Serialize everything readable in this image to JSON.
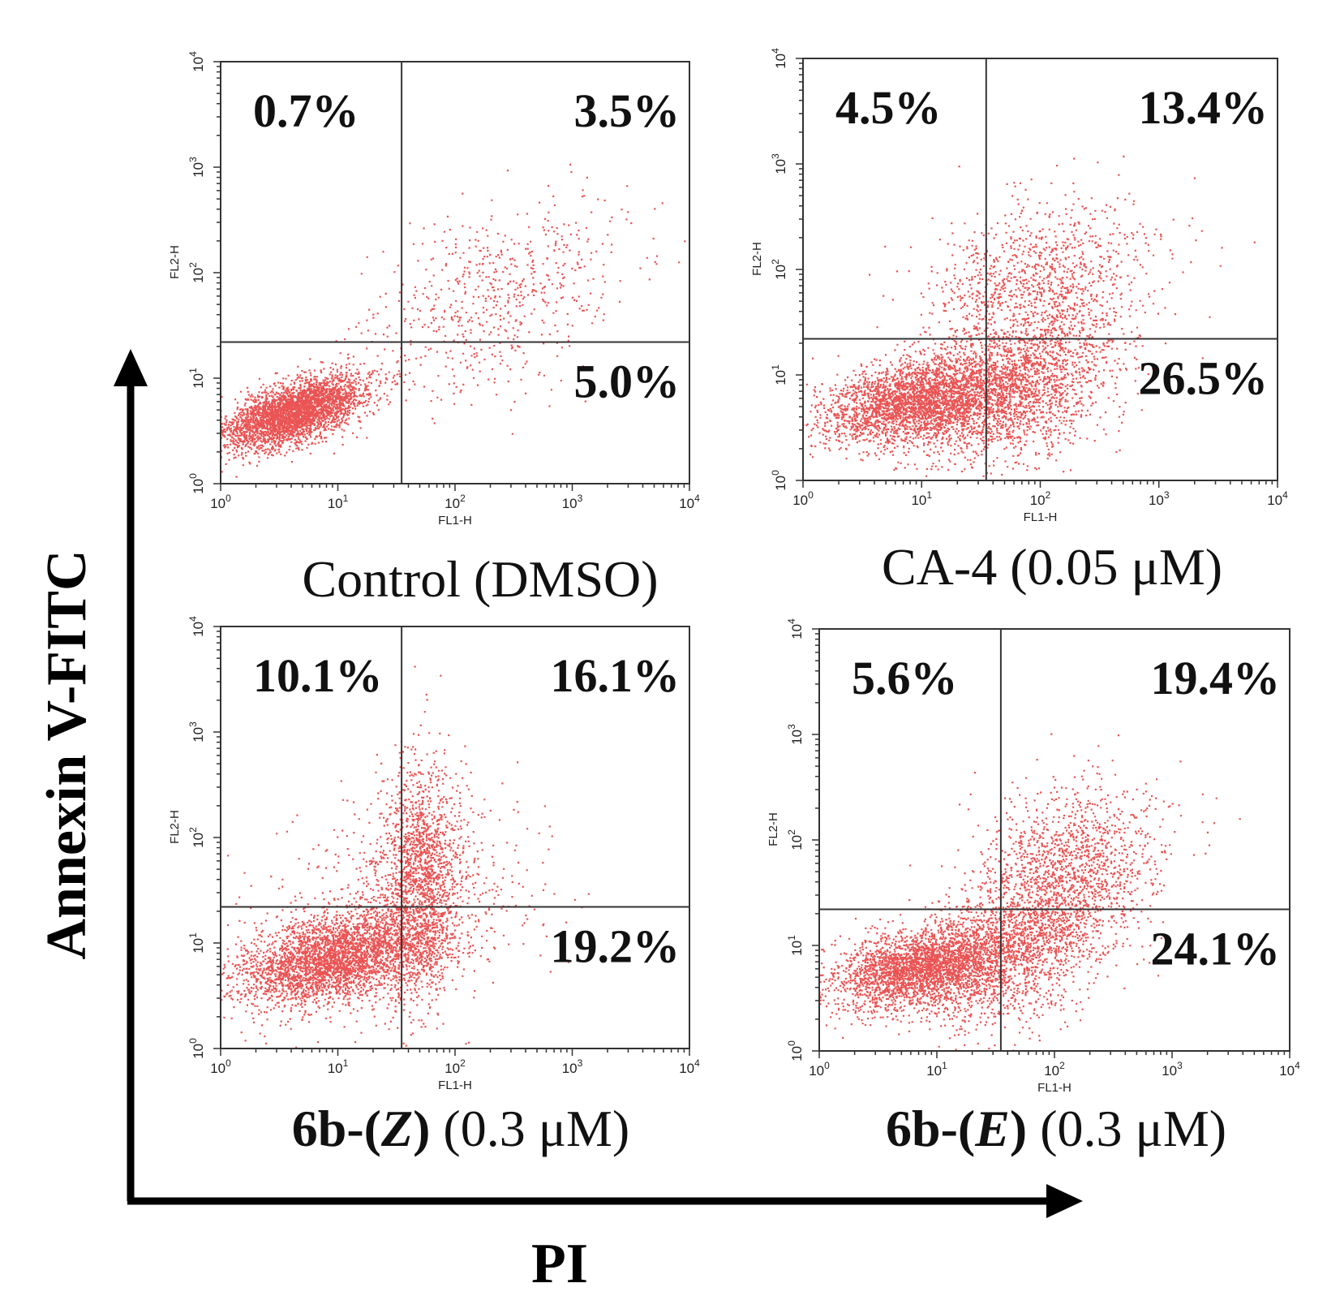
{
  "figure": {
    "y_axis_label": "Annexin V-FITC",
    "x_axis_label": "PI"
  },
  "chart_data": [
    {
      "type": "scatter",
      "panel": "top-left",
      "title": "Control (DMSO)",
      "title_parts": [
        {
          "text": "Control (DMSO)",
          "bold": false,
          "italic": false
        }
      ],
      "xlabel": "FL1-H",
      "ylabel": "FL2-H",
      "xscale": "log",
      "yscale": "log",
      "xlim": [
        1,
        10000
      ],
      "ylim": [
        1,
        10000
      ],
      "xticks": [
        "10",
        "10",
        "10",
        "10",
        "10"
      ],
      "xtick_exponents": [
        "0",
        "1",
        "2",
        "3",
        "4"
      ],
      "yticks": [
        "10",
        "10",
        "10",
        "10",
        "10"
      ],
      "ytick_exponents": [
        "0",
        "1",
        "2",
        "3",
        "4"
      ],
      "gate": {
        "x": 35,
        "y": 22
      },
      "quadrants": {
        "upper_left": "0.7%",
        "upper_right": "3.5%",
        "lower_right": "5.0%"
      },
      "populations": [
        {
          "cx_log": 0.62,
          "cy_log": 0.68,
          "sx": 0.3,
          "sy": 0.17,
          "rho": 0.6,
          "n": 3400
        },
        {
          "cx_log": 2.35,
          "cy_log": 1.75,
          "sx": 0.55,
          "sy": 0.45,
          "rho": 0.4,
          "n": 650
        }
      ]
    },
    {
      "type": "scatter",
      "panel": "top-right",
      "title": "CA-4 (0.05 μM)",
      "title_parts": [
        {
          "text": "CA-4 (0.05 μM)",
          "bold": false,
          "italic": false
        }
      ],
      "xlabel": "FL1-H",
      "ylabel": "FL2-H",
      "xscale": "log",
      "yscale": "log",
      "xlim": [
        1,
        10000
      ],
      "ylim": [
        1,
        10000
      ],
      "xticks": [
        "10",
        "10",
        "10",
        "10",
        "10"
      ],
      "xtick_exponents": [
        "0",
        "1",
        "2",
        "3",
        "4"
      ],
      "yticks": [
        "10",
        "10",
        "10",
        "10",
        "10"
      ],
      "ytick_exponents": [
        "0",
        "1",
        "2",
        "3",
        "4"
      ],
      "gate": {
        "x": 35,
        "y": 22
      },
      "quadrants": {
        "upper_left": "4.5%",
        "upper_right": "13.4%",
        "lower_right": "26.5%"
      },
      "populations": [
        {
          "cx_log": 0.95,
          "cy_log": 0.75,
          "sx": 0.4,
          "sy": 0.2,
          "rho": 0.3,
          "n": 3000
        },
        {
          "cx_log": 1.8,
          "cy_log": 0.9,
          "sx": 0.4,
          "sy": 0.38,
          "rho": 0.3,
          "n": 2000
        },
        {
          "cx_log": 2.0,
          "cy_log": 1.9,
          "sx": 0.45,
          "sy": 0.4,
          "rho": 0.2,
          "n": 1100
        }
      ]
    },
    {
      "type": "scatter",
      "panel": "bottom-left",
      "title": "6b-(Z) (0.3 μM)",
      "title_parts": [
        {
          "text": "6b-(",
          "bold": true,
          "italic": false
        },
        {
          "text": "Z",
          "bold": true,
          "italic": true
        },
        {
          "text": ")",
          "bold": true,
          "italic": false
        },
        {
          "text": " (0.3 μM)",
          "bold": false,
          "italic": false
        }
      ],
      "xlabel": "FL1-H",
      "ylabel": "FL2-H",
      "xscale": "log",
      "yscale": "log",
      "xlim": [
        1,
        10000
      ],
      "ylim": [
        1,
        10000
      ],
      "xticks": [
        "10",
        "10",
        "10",
        "10",
        "10"
      ],
      "xtick_exponents": [
        "0",
        "1",
        "2",
        "3",
        "4"
      ],
      "yticks": [
        "10",
        "10",
        "10",
        "10",
        "10"
      ],
      "ytick_exponents": [
        "0",
        "1",
        "2",
        "3",
        "4"
      ],
      "gate": {
        "x": 35,
        "y": 22
      },
      "quadrants": {
        "upper_left": "10.1%",
        "upper_right": "16.1%",
        "lower_right": "19.2%"
      },
      "populations": [
        {
          "cx_log": 0.95,
          "cy_log": 0.85,
          "sx": 0.42,
          "sy": 0.22,
          "rho": 0.4,
          "n": 3200
        },
        {
          "cx_log": 1.7,
          "cy_log": 1.6,
          "sx": 0.18,
          "sy": 0.55,
          "rho": 0.1,
          "n": 1700
        },
        {
          "cx_log": 1.5,
          "cy_log": 1.3,
          "sx": 0.6,
          "sy": 0.5,
          "rho": 0.2,
          "n": 700
        }
      ]
    },
    {
      "type": "scatter",
      "panel": "bottom-right",
      "title": "6b-(E) (0.3 μM)",
      "title_parts": [
        {
          "text": "6b-(",
          "bold": true,
          "italic": false
        },
        {
          "text": "E",
          "bold": true,
          "italic": true
        },
        {
          "text": ")",
          "bold": true,
          "italic": false
        },
        {
          "text": " (0.3 μM)",
          "bold": false,
          "italic": false
        }
      ],
      "xlabel": "FL1-H",
      "ylabel": "FL2-H",
      "xscale": "log",
      "yscale": "log",
      "xlim": [
        1,
        10000
      ],
      "ylim": [
        1,
        10000
      ],
      "xticks": [
        "10",
        "10",
        "10",
        "10",
        "10"
      ],
      "xtick_exponents": [
        "0",
        "1",
        "2",
        "3",
        "4"
      ],
      "yticks": [
        "10",
        "10",
        "10",
        "10",
        "10"
      ],
      "ytick_exponents": [
        "0",
        "1",
        "2",
        "3",
        "4"
      ],
      "gate": {
        "x": 35,
        "y": 22
      },
      "quadrants": {
        "upper_left": "5.6%",
        "upper_right": "19.4%",
        "lower_right": "24.1%"
      },
      "populations": [
        {
          "cx_log": 0.85,
          "cy_log": 0.8,
          "sx": 0.38,
          "sy": 0.2,
          "rho": 0.4,
          "n": 2800
        },
        {
          "cx_log": 1.7,
          "cy_log": 1.0,
          "sx": 0.4,
          "sy": 0.38,
          "rho": 0.4,
          "n": 1700
        },
        {
          "cx_log": 2.1,
          "cy_log": 1.75,
          "sx": 0.4,
          "sy": 0.4,
          "rho": 0.3,
          "n": 1300
        }
      ]
    }
  ],
  "colors": {
    "dots": "#e31b1b",
    "frame": "#333333",
    "arrow": "#000000"
  }
}
